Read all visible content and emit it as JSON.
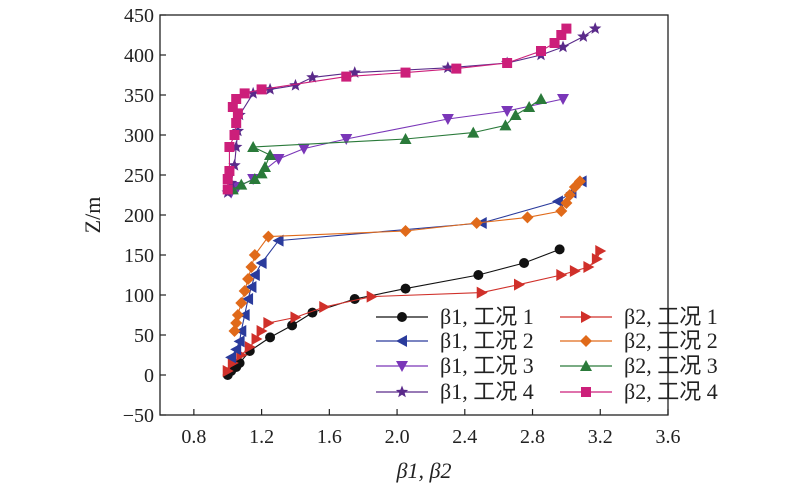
{
  "chart_data": {
    "type": "line",
    "xlabel": "β1, β2",
    "ylabel": "Z/m",
    "xlim": [
      0.6,
      3.6
    ],
    "ylim": [
      -50,
      450
    ],
    "xticks": [
      "0.8",
      "1.2",
      "1.6",
      "2.0",
      "2.4",
      "2.8",
      "3.2",
      "3.6"
    ],
    "yticks": [
      "−50",
      "0",
      "50",
      "100",
      "150",
      "200",
      "250",
      "300",
      "350",
      "400",
      "450"
    ],
    "grid": false,
    "legend_position": "bottom-right",
    "series": [
      {
        "name": "β1, 工况 1",
        "group": "case1",
        "marker": "circle",
        "color": "#111111",
        "points": [
          [
            1.0,
            0
          ],
          [
            1.02,
            5
          ],
          [
            1.05,
            10
          ],
          [
            1.07,
            15
          ],
          [
            1.13,
            30
          ],
          [
            1.25,
            47
          ],
          [
            1.38,
            62
          ],
          [
            1.5,
            78
          ],
          [
            1.75,
            95
          ],
          [
            2.05,
            108
          ],
          [
            2.48,
            125
          ],
          [
            2.75,
            140
          ],
          [
            2.96,
            157
          ]
        ]
      },
      {
        "name": "β2, 工况 1",
        "group": "case1",
        "marker": "triangle-right",
        "color": "#d0302a",
        "points": [
          [
            1.0,
            5
          ],
          [
            1.03,
            15
          ],
          [
            1.08,
            25
          ],
          [
            1.13,
            35
          ],
          [
            1.17,
            45
          ],
          [
            1.2,
            55
          ],
          [
            1.24,
            65
          ],
          [
            1.4,
            72
          ],
          [
            1.57,
            85
          ],
          [
            1.85,
            98
          ],
          [
            2.5,
            103
          ],
          [
            2.72,
            113
          ],
          [
            2.97,
            125
          ],
          [
            3.05,
            130
          ],
          [
            3.13,
            135
          ],
          [
            3.18,
            145
          ],
          [
            3.2,
            155
          ]
        ]
      },
      {
        "name": "β1, 工况 2",
        "group": "case2",
        "marker": "triangle-left",
        "color": "#2a3b9c",
        "points": [
          [
            1.02,
            22
          ],
          [
            1.05,
            32
          ],
          [
            1.07,
            42
          ],
          [
            1.08,
            55
          ],
          [
            1.1,
            75
          ],
          [
            1.12,
            95
          ],
          [
            1.14,
            110
          ],
          [
            1.16,
            125
          ],
          [
            1.2,
            140
          ],
          [
            1.3,
            168
          ],
          [
            2.5,
            190
          ],
          [
            2.95,
            217
          ],
          [
            3.03,
            228
          ],
          [
            3.09,
            242
          ]
        ]
      },
      {
        "name": "β2, 工况 2",
        "group": "case2",
        "marker": "diamond",
        "color": "#e06a1a",
        "points": [
          [
            1.04,
            55
          ],
          [
            1.05,
            65
          ],
          [
            1.06,
            75
          ],
          [
            1.08,
            90
          ],
          [
            1.1,
            105
          ],
          [
            1.12,
            120
          ],
          [
            1.14,
            135
          ],
          [
            1.16,
            150
          ],
          [
            1.24,
            173
          ],
          [
            2.05,
            180
          ],
          [
            2.47,
            190
          ],
          [
            2.77,
            197
          ],
          [
            2.97,
            205
          ],
          [
            3.0,
            215
          ],
          [
            3.02,
            225
          ],
          [
            3.05,
            235
          ],
          [
            3.08,
            242
          ]
        ]
      },
      {
        "name": "β1, 工况 3",
        "group": "case3",
        "marker": "triangle-down",
        "color": "#7a36b8",
        "points": [
          [
            1.02,
            228
          ],
          [
            1.06,
            235
          ],
          [
            1.15,
            245
          ],
          [
            1.3,
            270
          ],
          [
            1.45,
            283
          ],
          [
            1.7,
            295
          ],
          [
            2.3,
            320
          ],
          [
            2.65,
            330
          ],
          [
            2.98,
            345
          ]
        ]
      },
      {
        "name": "β2, 工况 3",
        "group": "case3",
        "marker": "triangle-up",
        "color": "#2a7a3a",
        "points": [
          [
            1.03,
            232
          ],
          [
            1.08,
            238
          ],
          [
            1.16,
            245
          ],
          [
            1.2,
            252
          ],
          [
            1.22,
            260
          ],
          [
            1.25,
            275
          ],
          [
            1.15,
            285
          ],
          [
            2.05,
            295
          ],
          [
            2.45,
            303
          ],
          [
            2.64,
            312
          ],
          [
            2.7,
            325
          ],
          [
            2.78,
            335
          ],
          [
            2.85,
            345
          ]
        ]
      },
      {
        "name": "β1, 工况 4",
        "group": "case4",
        "marker": "star",
        "color": "#5a2a8a",
        "points": [
          [
            1.0,
            228
          ],
          [
            1.02,
            240
          ],
          [
            1.04,
            262
          ],
          [
            1.05,
            285
          ],
          [
            1.06,
            305
          ],
          [
            1.07,
            325
          ],
          [
            1.15,
            352
          ],
          [
            1.25,
            357
          ],
          [
            1.4,
            362
          ],
          [
            1.5,
            372
          ],
          [
            1.75,
            378
          ],
          [
            2.3,
            384
          ],
          [
            2.65,
            390
          ],
          [
            2.85,
            400
          ],
          [
            2.98,
            410
          ],
          [
            3.1,
            423
          ],
          [
            3.17,
            433
          ]
        ]
      },
      {
        "name": "β2, 工况 4",
        "group": "case4",
        "marker": "square",
        "color": "#cc1f7a",
        "points": [
          [
            1.0,
            232
          ],
          [
            1.0,
            245
          ],
          [
            1.01,
            255
          ],
          [
            1.01,
            285
          ],
          [
            1.04,
            300
          ],
          [
            1.05,
            315
          ],
          [
            1.06,
            327
          ],
          [
            1.03,
            335
          ],
          [
            1.05,
            345
          ],
          [
            1.1,
            352
          ],
          [
            1.2,
            357
          ],
          [
            1.7,
            373
          ],
          [
            2.05,
            378
          ],
          [
            2.35,
            383
          ],
          [
            2.65,
            390
          ],
          [
            2.85,
            405
          ],
          [
            2.93,
            415
          ],
          [
            2.97,
            425
          ],
          [
            3.0,
            433
          ]
        ]
      }
    ]
  }
}
